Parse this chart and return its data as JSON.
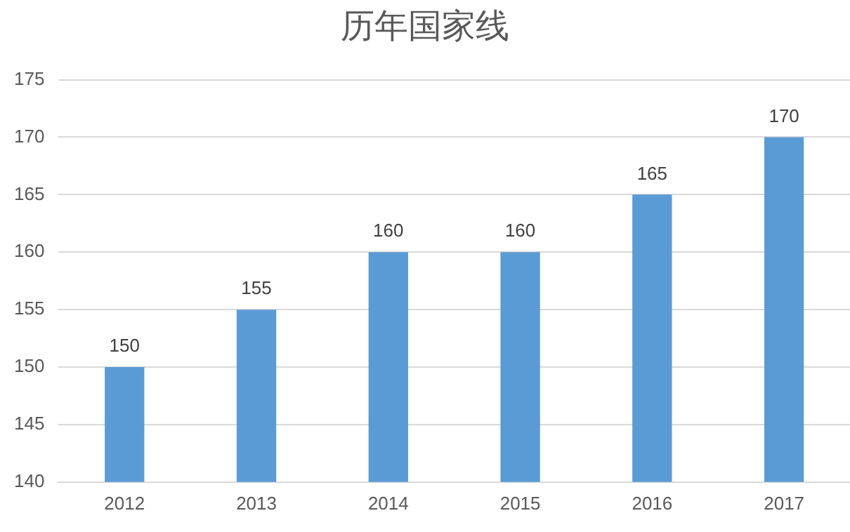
{
  "chart_data": {
    "type": "bar",
    "title": "历年国家线",
    "categories": [
      "2012",
      "2013",
      "2014",
      "2015",
      "2016",
      "2017"
    ],
    "values": [
      150,
      155,
      160,
      160,
      165,
      170
    ],
    "color": "#5b9bd5",
    "ylim": [
      140,
      175
    ],
    "yticks": [
      140,
      145,
      150,
      155,
      160,
      165,
      170,
      175
    ],
    "grid": "y",
    "data_labels": true
  }
}
